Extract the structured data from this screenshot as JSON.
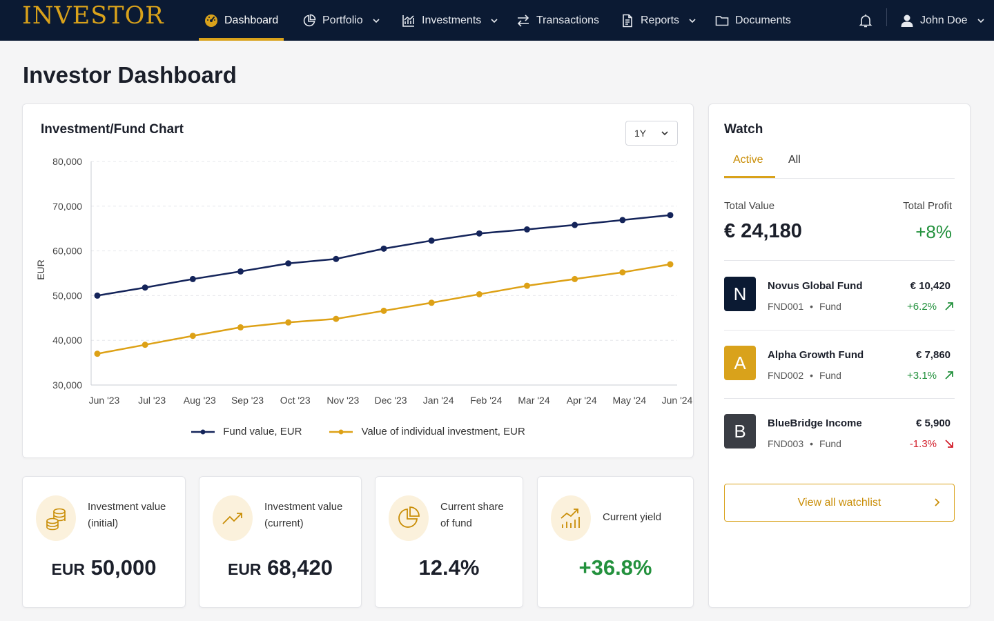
{
  "brand": "INVESTOR",
  "nav": {
    "items": [
      {
        "label": "Dashboard",
        "icon": "dashboard-gauge-icon"
      },
      {
        "label": "Portfolio",
        "icon": "pie-chart-icon"
      },
      {
        "label": "Investments",
        "icon": "bar-chart-icon"
      },
      {
        "label": "Transactions",
        "icon": "swap-arrows-icon"
      },
      {
        "label": "Reports",
        "icon": "document-icon"
      },
      {
        "label": "Documents",
        "icon": "folder-icon"
      }
    ],
    "user": "John Doe"
  },
  "page_title": "Investor Dashboard",
  "chart_card": {
    "title": "Investment/Fund Chart",
    "range": "1Y"
  },
  "chart_data": {
    "type": "line",
    "title": "",
    "ylabel": "EUR",
    "xlabel": "",
    "categories": [
      "Jun '23",
      "Jul '23",
      "Aug '23",
      "Sep '23",
      "Oct '23",
      "Nov '23",
      "Dec '23",
      "Jan '24",
      "Feb '24",
      "Mar '24",
      "Apr '24",
      "May '24",
      "Jun '24"
    ],
    "ylim": [
      30000,
      80000
    ],
    "yticks": [
      "80,000",
      "70,000",
      "60,000",
      "50,000",
      "40,000",
      "30,000"
    ],
    "grid": true,
    "legend_position": "bottom",
    "series": [
      {
        "name": "Fund value, EUR",
        "color": "#14245a",
        "values": [
          50000,
          51800,
          53700,
          55400,
          57200,
          58200,
          60500,
          62300,
          63900,
          64800,
          65800,
          66900,
          68000
        ]
      },
      {
        "name": "Value of individual investment, EUR",
        "color": "#dda116",
        "values": [
          37000,
          39000,
          41000,
          42900,
          44000,
          44800,
          46600,
          48400,
          50300,
          52200,
          53700,
          55200,
          57000
        ]
      }
    ]
  },
  "watch": {
    "title": "Watch",
    "tabs": [
      {
        "label": "Active"
      },
      {
        "label": "All"
      }
    ],
    "total_value_label": "Total Value",
    "total_value": "€ 24,180",
    "total_profit_label": "Total Profit",
    "total_profit": "+8%",
    "funds": [
      {
        "initial": "N",
        "name": "Novus Global Fund",
        "code": "FND001",
        "type": "Fund",
        "value": "€ 10,420",
        "change": "+6.2%",
        "trend": "up",
        "color": "#0b1a33"
      },
      {
        "initial": "A",
        "name": "Alpha Growth Fund",
        "code": "FND002",
        "type": "Fund",
        "value": "€ 7,860",
        "change": "+3.1%",
        "trend": "up",
        "color": "#d9a21b"
      },
      {
        "initial": "B",
        "name": "BlueBridge Income",
        "code": "FND003",
        "type": "Fund",
        "value": "€ 5,900",
        "change": "-1.3%",
        "trend": "down",
        "color": "#3a3d44"
      }
    ],
    "button_label": "View all watchlist"
  },
  "kpis": [
    {
      "label_line1": "Investment value",
      "label_line2": "(initial)",
      "unit": "EUR",
      "value": "50,000",
      "icon": "coins-icon"
    },
    {
      "label_line1": "Investment value",
      "label_line2": "(current)",
      "unit": "EUR",
      "value": "68,420",
      "icon": "trend-up-icon"
    },
    {
      "label_line1": "Current share",
      "label_line2": "of fund",
      "unit": "",
      "value": "12.4%",
      "icon": "pie-chart-icon"
    },
    {
      "label_line1": "Current yield",
      "label_line2": "",
      "unit": "",
      "value": "+36.8%",
      "icon": "growth-bars-icon"
    }
  ],
  "colors": {
    "navy": "#0b1a33",
    "gold": "#d9a21b",
    "positive": "#23913d",
    "negative": "#d21f2b"
  }
}
